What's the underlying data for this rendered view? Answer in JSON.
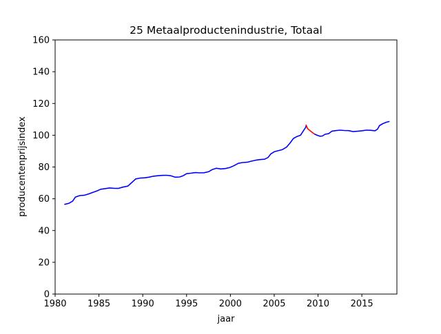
{
  "chart_data": {
    "type": "line",
    "title": "25 Metaalproductenindustrie, Totaal",
    "xlabel": "jaar",
    "ylabel": "producentenprijsindex",
    "xlim": [
      1980,
      2019
    ],
    "ylim": [
      0,
      160
    ],
    "xticks": [
      1980,
      1985,
      1990,
      1995,
      2000,
      2005,
      2010,
      2015
    ],
    "yticks": [
      0,
      20,
      40,
      60,
      80,
      100,
      120,
      140,
      160
    ],
    "grid": false,
    "series": [
      {
        "color": "#0000ff",
        "points": [
          [
            1981.1,
            56.5
          ],
          [
            1981.6,
            57.2
          ],
          [
            1982.0,
            58.5
          ],
          [
            1982.3,
            61.0
          ],
          [
            1982.8,
            62.0
          ],
          [
            1983.3,
            62.2
          ],
          [
            1983.8,
            63.0
          ],
          [
            1984.3,
            64.0
          ],
          [
            1984.8,
            65.0
          ],
          [
            1985.2,
            66.0
          ],
          [
            1985.7,
            66.4
          ],
          [
            1986.2,
            66.8
          ],
          [
            1986.7,
            66.6
          ],
          [
            1987.2,
            66.5
          ],
          [
            1987.7,
            67.3
          ],
          [
            1988.3,
            68.0
          ],
          [
            1988.7,
            70.0
          ],
          [
            1989.2,
            72.5
          ],
          [
            1989.7,
            73.0
          ],
          [
            1990.2,
            73.2
          ],
          [
            1990.7,
            73.6
          ],
          [
            1991.2,
            74.2
          ],
          [
            1991.7,
            74.5
          ],
          [
            1992.2,
            74.7
          ],
          [
            1992.7,
            74.8
          ],
          [
            1993.2,
            74.5
          ],
          [
            1993.7,
            73.6
          ],
          [
            1994.2,
            73.7
          ],
          [
            1994.6,
            74.5
          ],
          [
            1995.0,
            75.8
          ],
          [
            1995.5,
            76.1
          ],
          [
            1996.0,
            76.5
          ],
          [
            1996.5,
            76.3
          ],
          [
            1997.0,
            76.4
          ],
          [
            1997.5,
            77.0
          ],
          [
            1997.9,
            78.3
          ],
          [
            1998.4,
            79.2
          ],
          [
            1998.9,
            78.8
          ],
          [
            1999.4,
            79.0
          ],
          [
            1999.9,
            79.6
          ],
          [
            2000.4,
            80.8
          ],
          [
            2000.9,
            82.3
          ],
          [
            2001.4,
            82.8
          ],
          [
            2001.9,
            83.0
          ],
          [
            2002.4,
            83.7
          ],
          [
            2002.9,
            84.3
          ],
          [
            2003.4,
            84.7
          ],
          [
            2003.9,
            84.9
          ],
          [
            2004.3,
            86.0
          ],
          [
            2004.6,
            88.2
          ],
          [
            2005.0,
            89.6
          ],
          [
            2005.4,
            90.2
          ],
          [
            2005.9,
            90.9
          ],
          [
            2006.4,
            92.5
          ],
          [
            2006.8,
            95.0
          ],
          [
            2007.2,
            98.0
          ],
          [
            2007.6,
            99.2
          ],
          [
            2008.0,
            100.0
          ],
          [
            2008.3,
            102.5
          ],
          [
            2008.6,
            105.0
          ],
          [
            2008.65,
            106.3
          ]
        ]
      },
      {
        "color": "#ff0000",
        "points": [
          [
            2008.65,
            106.3
          ],
          [
            2008.8,
            104.2
          ],
          [
            2009.1,
            102.8
          ],
          [
            2009.4,
            101.5
          ],
          [
            2009.65,
            100.6
          ]
        ]
      },
      {
        "color": "#0000ff",
        "points": [
          [
            2009.65,
            100.6
          ],
          [
            2009.9,
            100.0
          ],
          [
            2010.2,
            99.4
          ],
          [
            2010.5,
            99.5
          ],
          [
            2010.8,
            100.6
          ],
          [
            2011.2,
            101.0
          ],
          [
            2011.6,
            102.6
          ],
          [
            2012.0,
            102.9
          ],
          [
            2012.5,
            103.2
          ],
          [
            2013.0,
            103.0
          ],
          [
            2013.5,
            102.9
          ],
          [
            2014.0,
            102.3
          ],
          [
            2014.5,
            102.5
          ],
          [
            2015.0,
            102.8
          ],
          [
            2015.5,
            103.2
          ],
          [
            2016.0,
            103.1
          ],
          [
            2016.5,
            102.8
          ],
          [
            2016.8,
            103.9
          ],
          [
            2017.0,
            106.0
          ],
          [
            2017.4,
            107.3
          ],
          [
            2017.8,
            108.2
          ],
          [
            2018.1,
            108.6
          ]
        ]
      }
    ]
  }
}
